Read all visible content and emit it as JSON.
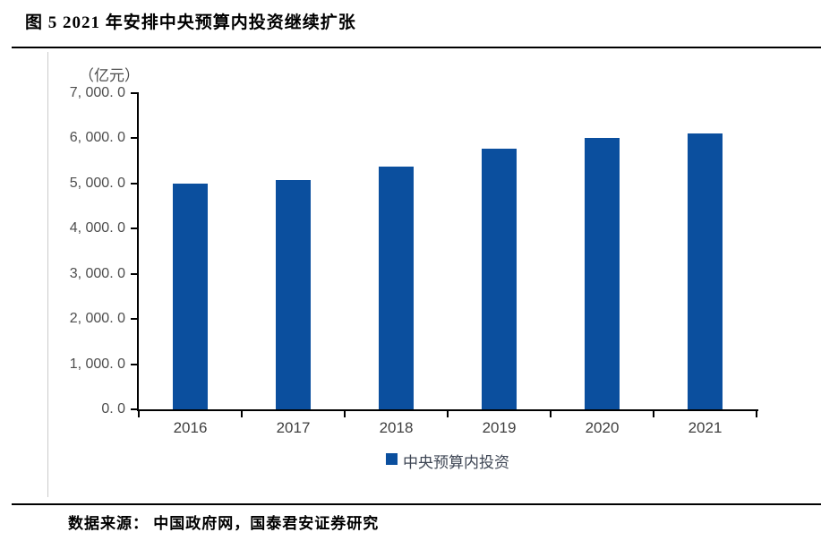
{
  "page": {
    "title": "图 5 2021 年安排中央预算内投资继续扩张",
    "source": "数据来源： 中国政府网，国泰君安证券研究"
  },
  "colors": {
    "bar": "#0B4F9E",
    "axis": "#000000",
    "tick_label": "#4D4D4D",
    "x_label": "#3F3F3F",
    "legend_text": "#3E4654",
    "divider": "#CACACA",
    "rule": "#000000",
    "background": "#FFFFFF"
  },
  "chart_data": {
    "type": "bar",
    "title": "图 5 2021 年安排中央预算内投资继续扩张",
    "unit_label": "（亿元）",
    "xlabel": "",
    "ylabel": "（亿元）",
    "categories": [
      "2016",
      "2017",
      "2018",
      "2019",
      "2020",
      "2021"
    ],
    "series": [
      {
        "name": "中央预算内投资",
        "values": [
          5000,
          5076,
          5376,
          5776,
          6000,
          6100
        ]
      }
    ],
    "ylim": [
      0,
      7000
    ],
    "y_tick_step": 1000,
    "y_tick_labels_top_down": [
      "7, 000. 0",
      "6, 000. 0",
      "5, 000. 0",
      "4, 000. 0",
      "3, 000. 0",
      "2, 000. 0",
      "1, 000. 0",
      "0. 0"
    ],
    "grid": false,
    "legend": {
      "position": "bottom",
      "entries": [
        "中央预算内投资"
      ]
    }
  }
}
